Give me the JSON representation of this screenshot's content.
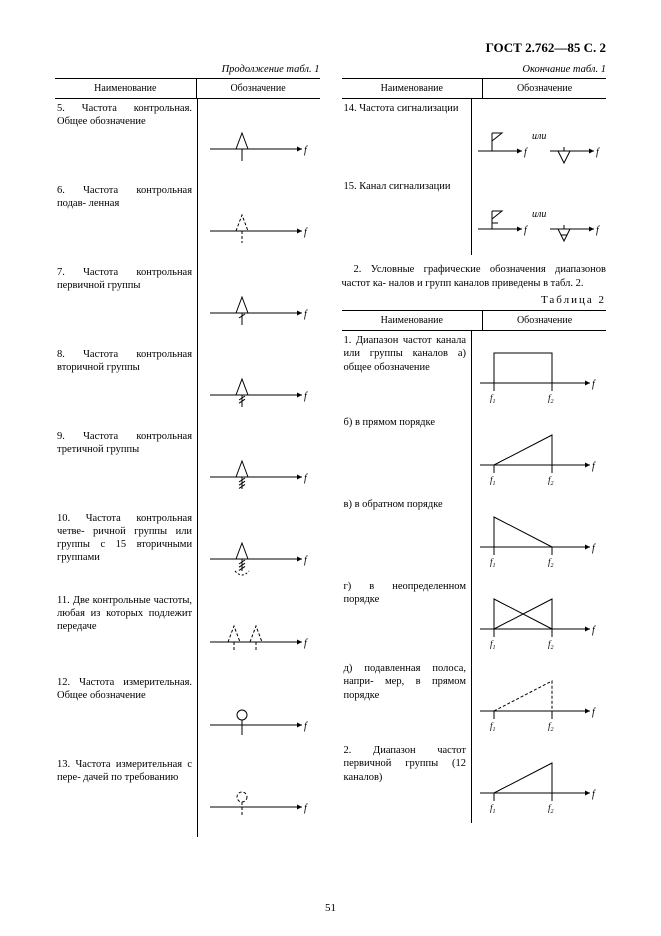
{
  "doc_header": "ГОСТ 2.762—85 С. 2",
  "page_number": "51",
  "left": {
    "caption": "Продолжение табл. 1",
    "head_left": "Наименование",
    "head_right": "Обозначение",
    "rows": [
      {
        "txt": "5. Частота контрольная.\nОбщее обозначение",
        "fig": "tri_plain"
      },
      {
        "txt": "6. Частота контрольная подав-\nленная",
        "fig": "tri_dash"
      },
      {
        "txt": "7. Частота контрольная первичной\nгруппы",
        "fig": "tri_tick1"
      },
      {
        "txt": "8. Частота контрольная вторичной\nгруппы",
        "fig": "tri_tick2"
      },
      {
        "txt": "9. Частота контрольная третичной\nгруппы",
        "fig": "tri_tick3"
      },
      {
        "txt": "10. Частота контрольная четве-\nричной группы или группы с 15\nвторичными группами",
        "fig": "tri_tick_arc"
      },
      {
        "txt": "11. Две контрольные частоты,\nлюбая из которых подлежит передаче",
        "fig": "two_tri_dash"
      },
      {
        "txt": "12. Частота измерительная.\nОбщее обозначение",
        "fig": "circle_plain"
      },
      {
        "txt": "13. Частота измерительная с пере-\nдачей по требованию",
        "fig": "circle_dash"
      }
    ]
  },
  "right_top": {
    "caption": "Окончание табл. 1",
    "head_left": "Наименование",
    "head_right": "Обозначение",
    "rows": [
      {
        "txt": "14. Частота сигнализации",
        "fig": "sig_freq"
      },
      {
        "txt": "15. Канал сигнализации",
        "fig": "sig_chan"
      }
    ]
  },
  "mid_para": "2. Условные графические обозначения диапазонов частот ка-\nналов и групп каналов приведены в табл. 2.",
  "table2_label": "Таблица 2",
  "right_bot": {
    "head_left": "Наименование",
    "head_right": "Обозначение",
    "rows": [
      {
        "txt": "1. Диапазон частот канала или\nгруппы каналов\nа) общее обозначение",
        "fig": "band_rect"
      },
      {
        "txt": "б) в прямом порядке",
        "fig": "band_fwd"
      },
      {
        "txt": "в) в обратном порядке",
        "fig": "band_rev"
      },
      {
        "txt": "г) в неопределенном порядке",
        "fig": "band_cross"
      },
      {
        "txt": "д) подавленная полоса, напри-\nмер, в прямом порядке",
        "fig": "band_fwd_dash"
      },
      {
        "txt": "2. Диапазон частот первичной\nгруппы (12 каналов)",
        "fig": "band_prim"
      }
    ]
  }
}
